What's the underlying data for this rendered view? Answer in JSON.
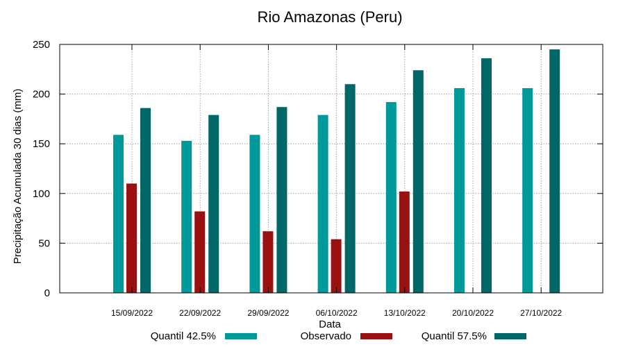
{
  "chart_data": {
    "type": "bar",
    "title": "Rio Amazonas (Peru)",
    "xlabel": "Data",
    "ylabel": "Precipitação Acumulada 30 dias (mm)",
    "ylim": [
      0,
      250
    ],
    "yticks": [
      "0",
      "50",
      "100",
      "150",
      "200",
      "250"
    ],
    "grid": true,
    "legend_position": "bottom",
    "categories": [
      "15/09/2022",
      "22/09/2022",
      "29/09/2022",
      "06/10/2022",
      "13/10/2022",
      "20/10/2022",
      "27/10/2022"
    ],
    "series": [
      {
        "name": "Quantil 42.5%",
        "color": "#009999",
        "values": [
          159,
          153,
          159,
          179,
          192,
          206,
          206
        ]
      },
      {
        "name": "Observado",
        "color": "#991111",
        "values": [
          110,
          82,
          62,
          54,
          102,
          null,
          null
        ]
      },
      {
        "name": "Quantil 57.5%",
        "color": "#006666",
        "values": [
          186,
          179,
          187,
          210,
          224,
          236,
          245
        ]
      }
    ]
  }
}
